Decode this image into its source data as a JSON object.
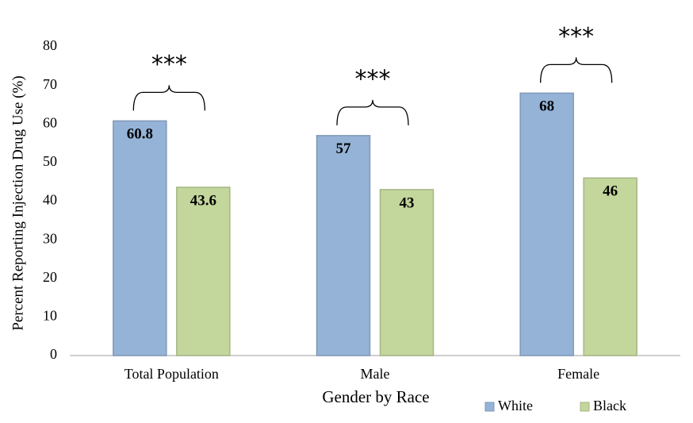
{
  "chart_data": {
    "type": "bar",
    "x_label": "Gender by Race",
    "y_label": "Percent Reporting Injection Drug Use (%)",
    "categories": [
      "Total Population",
      "Male",
      "Female"
    ],
    "series": [
      {
        "name": "White",
        "color": "#95b3d7",
        "values": [
          60.8,
          57,
          68
        ]
      },
      {
        "name": "Black",
        "color": "#c3d69b",
        "values": [
          43.6,
          43,
          46
        ]
      }
    ],
    "annotations": [
      "***",
      "***",
      "***"
    ],
    "ylim": [
      0,
      80
    ],
    "yticks": [
      0,
      10,
      20,
      30,
      40,
      50,
      60,
      70,
      80
    ],
    "grid": false,
    "legend": "bottom-right"
  }
}
